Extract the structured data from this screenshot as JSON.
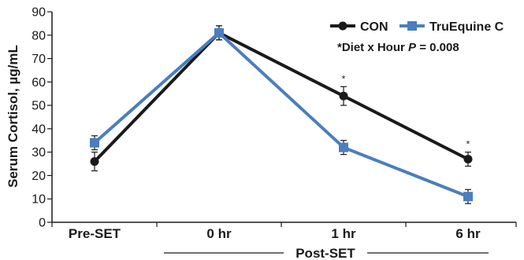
{
  "chart_data": {
    "type": "line",
    "ylabel": "Serum Cortisol, µg/mL",
    "ylim": [
      0,
      90
    ],
    "yticks": [
      "0",
      "10",
      "20",
      "30",
      "40",
      "50",
      "60",
      "70",
      "80",
      "90"
    ],
    "categories": [
      "Pre-SET",
      "0 hr",
      "1 hr",
      "6 hr"
    ],
    "group_label": "Post-SET",
    "grid": false,
    "legend_position": "top-right",
    "colors": {
      "CON": "#1a1a1a",
      "TruEquine C": "#4a7ebf"
    },
    "series": [
      {
        "name": "CON",
        "marker": "circle",
        "values": [
          26,
          81,
          54,
          27
        ],
        "errors": [
          4,
          3,
          4,
          3
        ]
      },
      {
        "name": "TruEquine C",
        "marker": "square",
        "values": [
          34,
          81,
          32,
          11
        ],
        "errors": [
          3,
          3,
          3,
          3
        ]
      }
    ],
    "annotation": {
      "prefix": "*Diet x Hour ",
      "p": "P",
      "suffix": " = 0.008"
    },
    "significance_markers": [
      {
        "category": "1 hr",
        "label": "*"
      },
      {
        "category": "6 hr",
        "label": "*"
      }
    ]
  }
}
